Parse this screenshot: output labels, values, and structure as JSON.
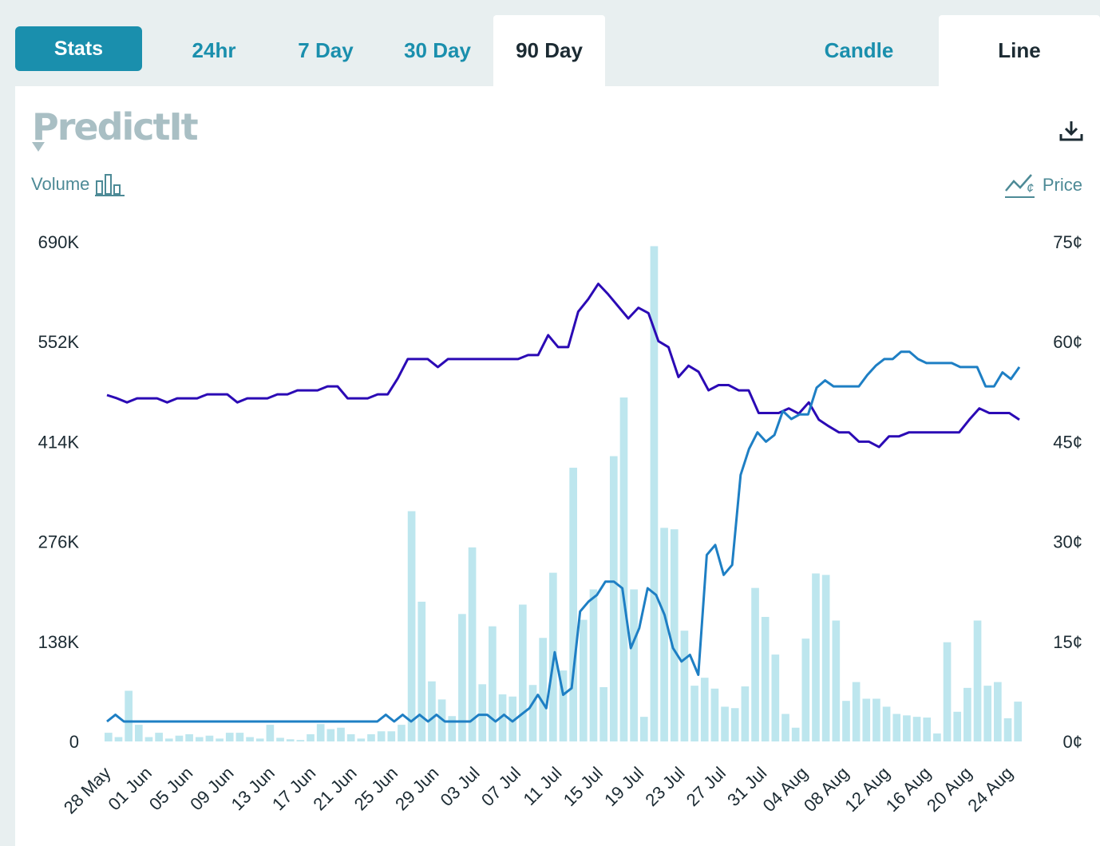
{
  "tabs": {
    "stats_label": "Stats",
    "range": [
      "24hr",
      "7 Day",
      "30 Day",
      "90 Day"
    ],
    "active_range": "90 Day",
    "view": [
      "Candle",
      "Line"
    ],
    "active_view": "Line"
  },
  "brand": {
    "logo_text": "PredictIt"
  },
  "legend": {
    "volume_label": "Volume",
    "price_label": "Price"
  },
  "icons": [
    "download-icon",
    "bar-chart-icon",
    "price-line-icon"
  ],
  "colors": {
    "accent": "#1a8fad",
    "volume_bar": "#bde6ee",
    "series_dark": "#2b0ab5",
    "series_light": "#1e7fc4",
    "axis_text": "#1c2b33"
  },
  "chart_data": {
    "type": "line",
    "x_ticks": [
      "28 May",
      "01 Jun",
      "05 Jun",
      "09 Jun",
      "13 Jun",
      "17 Jun",
      "21 Jun",
      "25 Jun",
      "29 Jun",
      "03 Jul",
      "07 Jul",
      "11 Jul",
      "15 Jul",
      "19 Jul",
      "23 Jul",
      "27 Jul",
      "31 Jul",
      "04 Aug",
      "08 Aug",
      "12 Aug",
      "16 Aug",
      "20 Aug",
      "24 Aug"
    ],
    "volume_axis": {
      "ticks": [
        "0",
        "138K",
        "276K",
        "414K",
        "552K",
        "690K"
      ],
      "ylim": [
        0,
        690000
      ]
    },
    "price_axis": {
      "ticks": [
        "0¢",
        "15¢",
        "30¢",
        "45¢",
        "60¢",
        "75¢"
      ],
      "ylim": [
        0,
        75
      ]
    },
    "volume": [
      12000,
      6000,
      70000,
      23000,
      6000,
      12000,
      4000,
      8000,
      10000,
      6000,
      8000,
      4000,
      12000,
      12000,
      6000,
      4000,
      23000,
      5000,
      3000,
      2000,
      10000,
      24000,
      17000,
      19000,
      10000,
      4000,
      10000,
      14000,
      14000,
      23000,
      318000,
      193000,
      83000,
      58000,
      35000,
      176000,
      268000,
      79000,
      159000,
      65000,
      62000,
      189000,
      78000,
      143000,
      233000,
      98000,
      378000,
      168000,
      210000,
      75000,
      394000,
      475000,
      210000,
      34000,
      684000,
      295000,
      293000,
      153000,
      77000,
      88000,
      73000,
      48000,
      46000,
      76000,
      212000,
      172000,
      120000,
      38000,
      19000,
      142000,
      232000,
      230000,
      167000,
      56000,
      82000,
      59000,
      59000,
      48000,
      38000,
      36000,
      34000,
      33000,
      11000,
      137000,
      41000,
      74000,
      167000,
      77000,
      82000,
      32000,
      55000
    ],
    "series": [
      {
        "color": "#2b0ab5",
        "values": [
          52,
          51.5,
          50.9,
          51.5,
          51.5,
          51.5,
          50.9,
          51.5,
          51.5,
          51.5,
          52.1,
          52.1,
          52.1,
          50.9,
          51.5,
          51.5,
          51.5,
          52.1,
          52.1,
          52.7,
          52.7,
          52.7,
          53.3,
          53.3,
          51.5,
          51.5,
          51.5,
          52.1,
          52.1,
          54.5,
          57.4,
          57.4,
          57.4,
          56.2,
          57.4,
          57.4,
          57.4,
          57.4,
          57.4,
          57.4,
          57.4,
          57.4,
          58,
          58,
          61,
          59.2,
          59.2,
          64.5,
          66.4,
          68.7,
          67.1,
          65.3,
          63.5,
          65.1,
          64.3,
          60.1,
          59.2,
          54.7,
          56.4,
          55.5,
          52.7,
          53.5,
          53.5,
          52.7,
          52.7,
          49.3,
          49.3,
          49.3,
          50,
          49.2,
          50.9,
          48.3,
          47.3,
          46.4,
          46.4,
          45,
          45,
          44.2,
          45.8,
          45.8,
          46.4,
          46.4,
          46.4,
          46.4,
          46.4,
          46.4,
          48.3,
          50,
          49.3,
          49.3,
          49.3,
          48.3
        ]
      },
      {
        "color": "#1e7fc4",
        "values": [
          3,
          4,
          3,
          3,
          3,
          3,
          3,
          3,
          3,
          3,
          3,
          3,
          3,
          3,
          3,
          3,
          3,
          3,
          3,
          3,
          3,
          3,
          3,
          3,
          3,
          3,
          3,
          3,
          3,
          3,
          3,
          3,
          3,
          4,
          3,
          4,
          3,
          4,
          3,
          4,
          3,
          3,
          3,
          3,
          4,
          4,
          3,
          4,
          3,
          4,
          5,
          7,
          5,
          13.4,
          7,
          8,
          19.5,
          21,
          22,
          24,
          24,
          23,
          14,
          17,
          23,
          22,
          19,
          14,
          12,
          13,
          10,
          28,
          29.5,
          25,
          26.5,
          40,
          43.9,
          46.4,
          45,
          46,
          49.6,
          48.4,
          49.1,
          49.1,
          53.1,
          54.2,
          53.3,
          53.3,
          53.3,
          53.3,
          55,
          56.4,
          57.4,
          57.4,
          58.5,
          58.5,
          57.4,
          56.8,
          56.8,
          56.8,
          56.8,
          56.2,
          56.2,
          56.2,
          53.3,
          53.3,
          55.4,
          54.4,
          56.2
        ]
      }
    ]
  }
}
